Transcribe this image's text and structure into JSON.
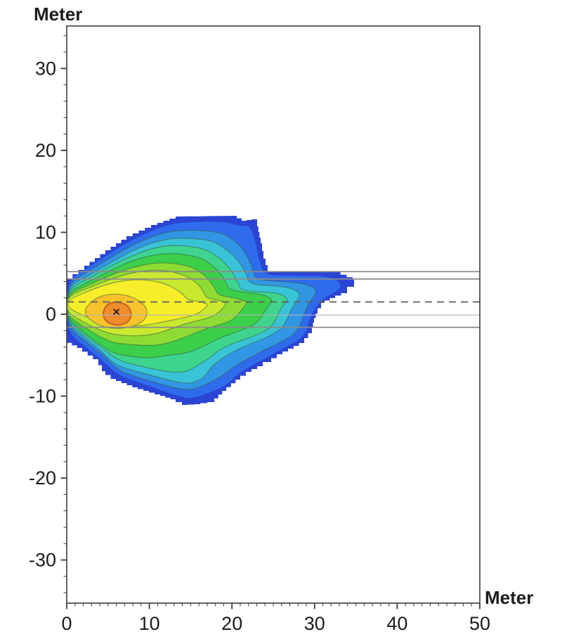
{
  "figure": {
    "background": "#ffffff",
    "description": "Filled contour footprint map of a level distribution around a source near the left axis; both axes in meters"
  },
  "chart_data": {
    "type": "heatmap",
    "subtype": "filled-contour-footprint",
    "title": "",
    "xlabel": "Meter",
    "ylabel": "Meter",
    "xlim": [
      0,
      50
    ],
    "ylim": [
      -35,
      35
    ],
    "x_ticks": [
      0,
      10,
      20,
      30,
      40,
      50
    ],
    "x_minor_step": 1,
    "y_ticks": [
      30,
      20,
      10,
      0,
      -10,
      -20,
      -30
    ],
    "y_minor_step": 2,
    "grid": false,
    "legend": false,
    "frame_color": "#3c3c3c",
    "tick_label_color": "#1c1c1c",
    "contour_line_color": "rgba(58,92,60,0.55)",
    "reference_lines": [
      {
        "y": 5.2,
        "style": "solid",
        "color": "#8a8a8a",
        "thickness": 1.8
      },
      {
        "y": 4.3,
        "style": "solid",
        "color": "#8a8a8a",
        "thickness": 1.8
      },
      {
        "y": 1.5,
        "style": "dashed",
        "color": "#5f5f5f",
        "thickness": 1.8
      },
      {
        "y": -0.1,
        "style": "solid",
        "color": "#b3b3b3",
        "thickness": 1.2
      },
      {
        "y": -1.6,
        "style": "solid",
        "color": "#8a8a8a",
        "thickness": 1.8
      }
    ],
    "source_marker": {
      "x": 6,
      "y": 0.3,
      "symbol": "x",
      "color": "#111111"
    },
    "levels": [
      {
        "color": "#2a44d4",
        "x_left": 0.0,
        "x_right": 34.8,
        "y_top": 12.0,
        "y_bottom": -11.1
      },
      {
        "color": "#2e6cec",
        "x_left": 0.0,
        "x_right": 33.2,
        "y_top": 11.3,
        "y_bottom": -10.3
      },
      {
        "color": "#3197e4",
        "x_left": 0.0,
        "x_right": 30.3,
        "y_top": 10.3,
        "y_bottom": -9.2
      },
      {
        "color": "#38c4d6",
        "x_left": 0.0,
        "x_right": 28.3,
        "y_top": 9.4,
        "y_bottom": -8.4
      },
      {
        "color": "#3ed48e",
        "x_left": 0.0,
        "x_right": 26.4,
        "y_top": 8.5,
        "y_bottom": -7.1
      },
      {
        "color": "#3ccf49",
        "x_left": 0.0,
        "x_right": 24.7,
        "y_top": 7.5,
        "y_bottom": -5.4
      },
      {
        "color": "#8edc33",
        "x_left": 0.0,
        "x_right": 21.9,
        "y_top": 6.3,
        "y_bottom": -3.9
      },
      {
        "color": "#c9e930",
        "x_left": 0.0,
        "x_right": 19.3,
        "y_top": 5.4,
        "y_bottom": -2.7
      },
      {
        "color": "#f6ee2b",
        "x_left": 0.3,
        "x_right": 17.1,
        "y_top": 4.2,
        "y_bottom": -1.5
      },
      {
        "color": "#f7c32c",
        "x_left": 2.1,
        "x_right": 9.8,
        "y_top": 2.5,
        "y_bottom": -1.8
      },
      {
        "color": "#ef8c2c",
        "x_left": 4.4,
        "x_right": 7.8,
        "y_top": 1.5,
        "y_bottom": -1.4,
        "ring_color": "#c2641c"
      }
    ]
  }
}
